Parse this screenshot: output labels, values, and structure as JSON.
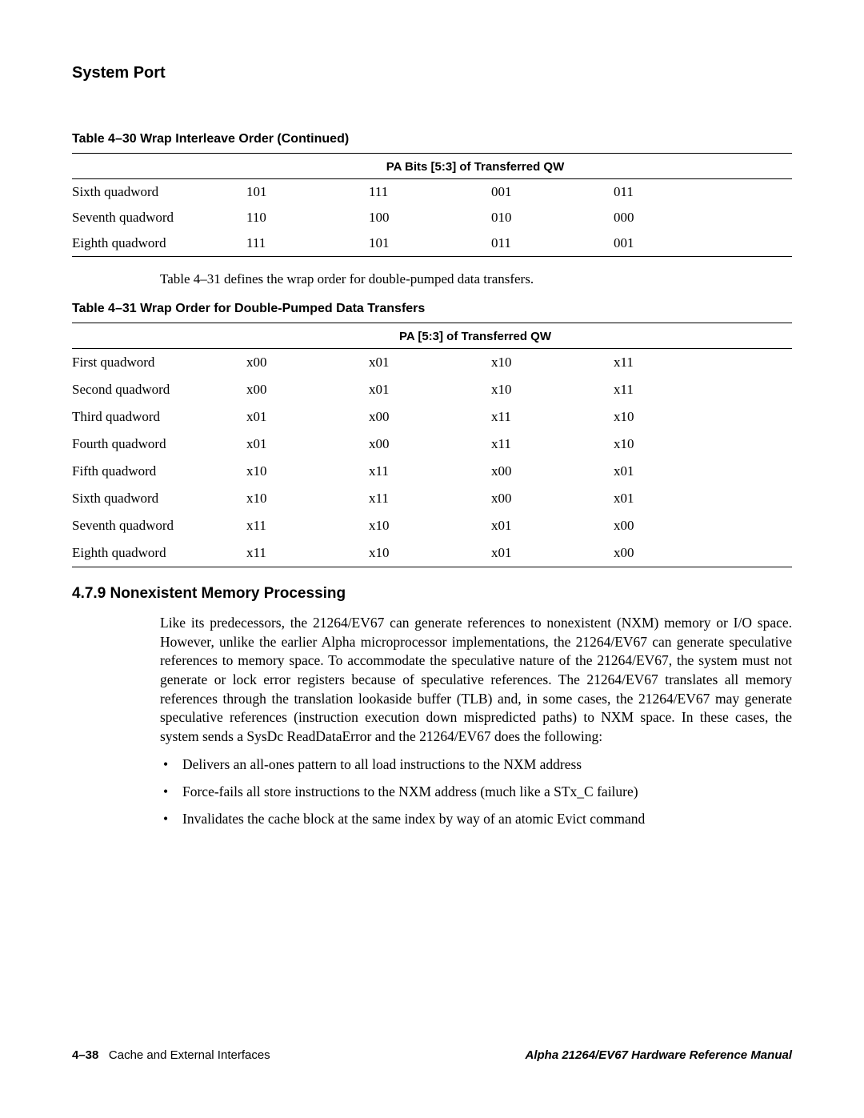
{
  "page_heading": "System Port",
  "table30": {
    "title": "Table 4–30  Wrap Interleave Order  (Continued)",
    "header": "PA Bits [5:3] of Transferred QW",
    "rows": [
      {
        "label": "Sixth quadword",
        "c1": "101",
        "c2": "111",
        "c3": "001",
        "c4": "011"
      },
      {
        "label": "Seventh quadword",
        "c1": "110",
        "c2": "100",
        "c3": "010",
        "c4": "000"
      },
      {
        "label": "Eighth quadword",
        "c1": "111",
        "c2": "101",
        "c3": "011",
        "c4": "001"
      }
    ]
  },
  "caption_431": "Table 4–31 defines the wrap order for double-pumped data transfers.",
  "table31": {
    "title": "Table 4–31  Wrap Order for Double-Pumped Data Transfers",
    "header": "PA [5:3] of Transferred QW",
    "rows": [
      {
        "label": "First quadword",
        "c1": "x00",
        "c2": "x01",
        "c3": "x10",
        "c4": "x11"
      },
      {
        "label": "Second quadword",
        "c1": "x00",
        "c2": "x01",
        "c3": "x10",
        "c4": "x11"
      },
      {
        "label": "Third quadword",
        "c1": "x01",
        "c2": "x00",
        "c3": "x11",
        "c4": "x10"
      },
      {
        "label": "Fourth quadword",
        "c1": "x01",
        "c2": "x00",
        "c3": "x11",
        "c4": "x10"
      },
      {
        "label": "Fifth quadword",
        "c1": "x10",
        "c2": "x11",
        "c3": "x00",
        "c4": "x01"
      },
      {
        "label": "Sixth quadword",
        "c1": "x10",
        "c2": "x11",
        "c3": "x00",
        "c4": "x01"
      },
      {
        "label": "Seventh quadword",
        "c1": "x11",
        "c2": "x10",
        "c3": "x01",
        "c4": "x00"
      },
      {
        "label": "Eighth quadword",
        "c1": "x11",
        "c2": "x10",
        "c3": "x01",
        "c4": "x00"
      }
    ]
  },
  "section_heading": "4.7.9 Nonexistent Memory Processing",
  "body_para": "Like its predecessors, the 21264/EV67 can generate references to nonexistent (NXM) memory or I/O space. However, unlike the earlier Alpha microprocessor implementations, the 21264/EV67 can generate speculative references to memory space. To accommodate the speculative nature of the 21264/EV67, the system must not generate or lock error registers because of speculative references. The 21264/EV67 translates all memory references through the translation lookaside buffer (TLB) and, in some cases, the 21264/EV67 may generate speculative references (instruction execution down mispredicted paths) to NXM space. In these cases, the system sends a SysDc ReadDataError and the 21264/EV67 does the following:",
  "bullets": [
    "Delivers an all-ones pattern to all load instructions to the NXM address",
    "Force-fails all store instructions to the NXM address (much like a STx_C failure)",
    "Invalidates the cache block at the same index by way of an atomic Evict command"
  ],
  "footer": {
    "page_no": "4–38",
    "left_text": "Cache and External Interfaces",
    "right_text": "Alpha 21264/EV67 Hardware Reference Manual"
  }
}
